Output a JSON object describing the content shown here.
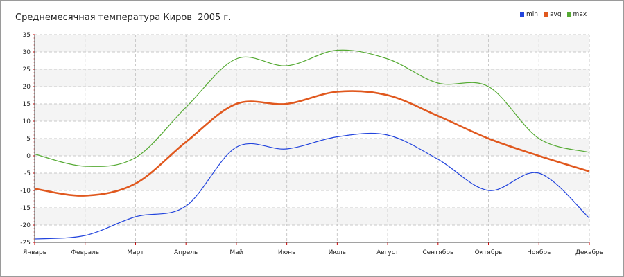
{
  "chart_data": {
    "type": "line",
    "title": "Среднемесячная температура Киров  2005 г.",
    "categories": [
      "Январь",
      "Февраль",
      "Март",
      "Апрель",
      "Май",
      "Июнь",
      "Июль",
      "Август",
      "Сентябрь",
      "Октябрь",
      "Ноябрь",
      "Декабрь"
    ],
    "series": [
      {
        "name": "min",
        "color": "#2244dd",
        "values": [
          -24,
          -23,
          -17.6,
          -14.5,
          2.5,
          2,
          5.5,
          6,
          -1,
          -10,
          -5,
          -18
        ]
      },
      {
        "name": "avg",
        "color": "#e0581e",
        "values": [
          -9.5,
          -11.5,
          -8,
          4,
          15,
          15,
          18.5,
          17.5,
          11.5,
          5,
          0,
          -4.5
        ]
      },
      {
        "name": "max",
        "color": "#55aa33",
        "values": [
          0.5,
          -3,
          -0.5,
          14,
          28,
          26,
          30.5,
          28,
          21,
          20,
          5,
          1
        ]
      }
    ],
    "ylim": [
      -25,
      35
    ],
    "yticks": [
      35,
      30,
      25,
      20,
      15,
      10,
      5,
      0,
      -5,
      -10,
      -15,
      -20,
      -25
    ],
    "grid": true,
    "legend": "top-right"
  }
}
